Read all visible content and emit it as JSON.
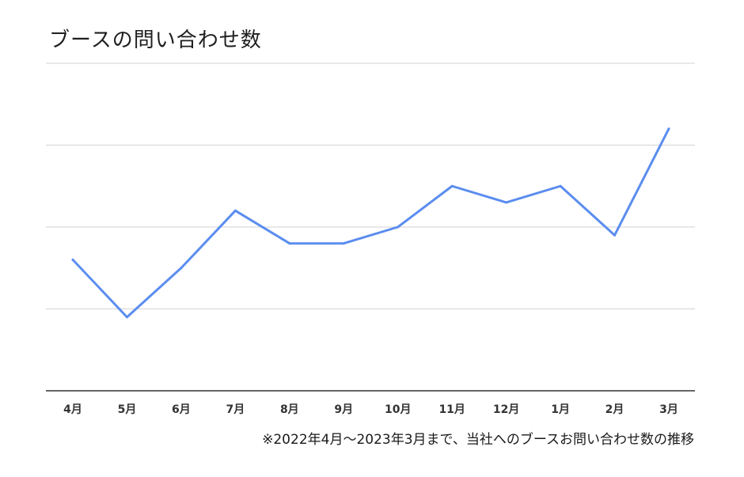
{
  "chart_data": {
    "type": "line",
    "title": "ブースの問い合わせ数",
    "categories": [
      "4月",
      "5月",
      "6月",
      "7月",
      "8月",
      "9月",
      "10月",
      "11月",
      "12月",
      "1月",
      "2月",
      "3月"
    ],
    "series": [
      {
        "values": [
          1.6,
          0.9,
          1.5,
          2.2,
          1.8,
          1.8,
          2.0,
          2.5,
          2.3,
          2.5,
          1.9,
          3.2
        ],
        "color": "#5b8def"
      }
    ],
    "ylim": [
      0,
      4
    ],
    "grid": true,
    "legend": "none",
    "xlabel": "",
    "ylabel": "",
    "note": "※2022年4月〜2023年3月まで、当社へのブースお問い合わせ数の推移"
  }
}
